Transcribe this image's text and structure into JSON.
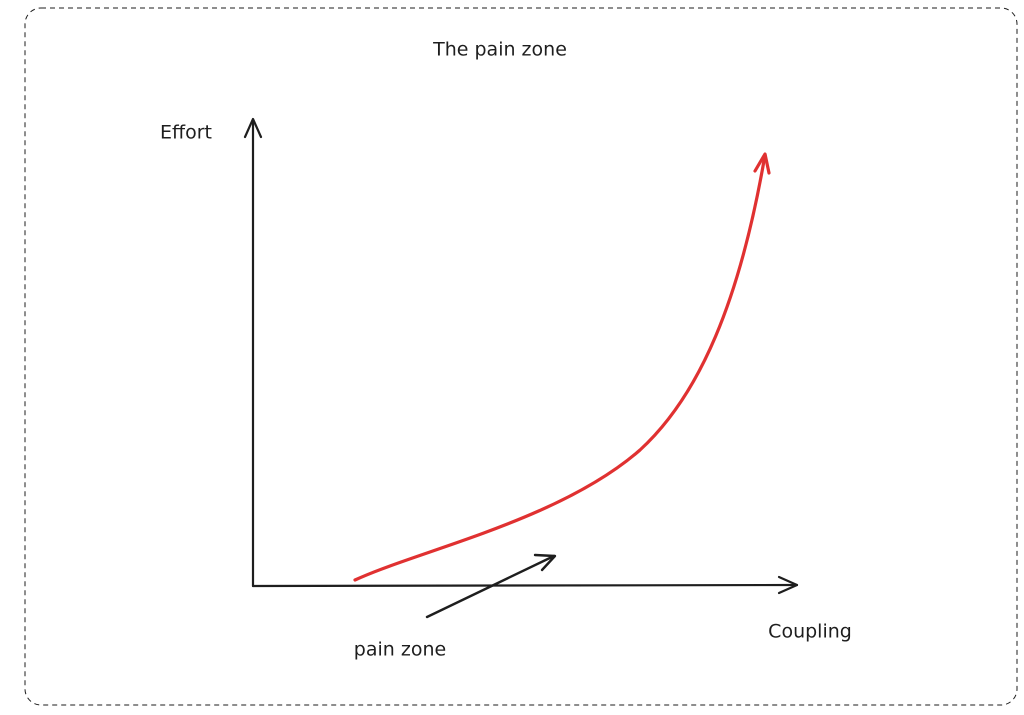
{
  "header": {
    "title": "The pain zone"
  },
  "y_axis": {
    "label": "Effort"
  },
  "x_axis": {
    "label": "Coupling"
  },
  "annotation": {
    "label": "pain zone"
  }
}
